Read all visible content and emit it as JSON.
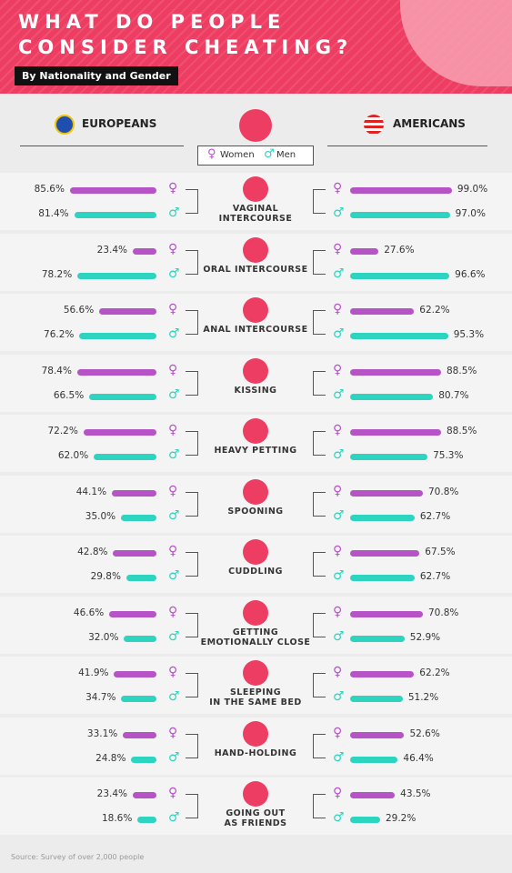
{
  "chart_data": {
    "type": "bar",
    "title": "WHAT DO PEOPLE\nCONSIDER CHEATING?",
    "subtitle": "By Nationality and Gender",
    "groups": [
      "EUROPEANS",
      "AMERICANS"
    ],
    "categories": [
      "VAGINAL\nINTERCOURSE",
      "ORAL INTERCOURSE",
      "ANAL INTERCOURSE",
      "KISSING",
      "HEAVY PETTING",
      "SPOONING",
      "CUDDLING",
      "GETTING\nEMOTIONALLY CLOSE",
      "SLEEPING\nIN THE SAME BED",
      "HAND-HOLDING",
      "GOING OUT\nAS FRIENDS"
    ],
    "series": [
      {
        "name": "Women",
        "symbol": "♀",
        "color": "#b553c7",
        "values": [
          [
            85.6,
            23.4,
            56.6,
            78.4,
            72.2,
            44.1,
            42.8,
            46.6,
            41.9,
            33.1,
            23.4
          ],
          [
            99.0,
            27.6,
            62.2,
            88.5,
            88.5,
            70.8,
            67.5,
            70.8,
            62.2,
            52.6,
            43.5
          ]
        ],
        "value_labels": [
          [
            "85.6%",
            "23.4%",
            "56.6%",
            "78.4%",
            "72.2%",
            "44.1%",
            "42.8%",
            "46.6%",
            "41.9%",
            "33.1%",
            "23.4%"
          ],
          [
            "99.0%",
            "27.6%",
            "62.2%",
            "88.5%",
            "88.5%",
            "70.8%",
            "67.5%",
            "70.8%",
            "62.2%",
            "52.6%",
            "43.5%"
          ]
        ]
      },
      {
        "name": "Men",
        "symbol": "♂",
        "color": "#2dd4c0",
        "values": [
          [
            81.4,
            78.2,
            76.2,
            66.5,
            62.0,
            35.0,
            29.8,
            32.0,
            34.7,
            24.8,
            18.6
          ],
          [
            97.0,
            96.6,
            95.3,
            80.7,
            75.3,
            62.7,
            62.7,
            52.9,
            51.2,
            46.4,
            29.2
          ]
        ],
        "value_labels": [
          [
            "81.4%",
            "78.2%",
            "76.2%",
            "66.5%",
            "62.0%",
            "35.0%",
            "29.8%",
            "32.0%",
            "34.7%",
            "24.8%",
            "18.6%"
          ],
          [
            "97.0%",
            "96.6%",
            "95.3%",
            "80.7%",
            "75.3%",
            "62.7%",
            "62.7%",
            "52.9%",
            "51.2%",
            "46.4%",
            "29.2%"
          ]
        ]
      }
    ],
    "source": "Source: Survey of over 2,000 people"
  }
}
